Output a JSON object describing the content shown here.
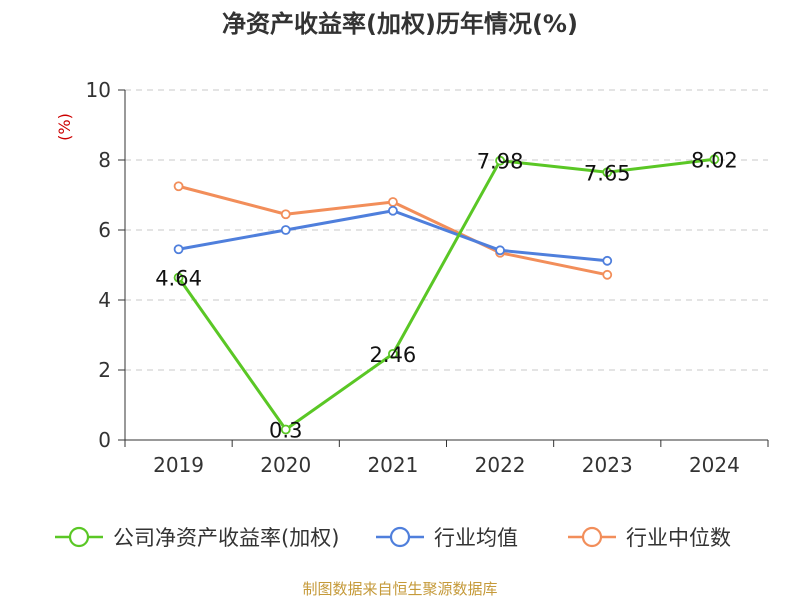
{
  "chart_data": {
    "type": "line",
    "title": "净资产收益率(加权)历年情况(%)",
    "ylabel": "(%)",
    "ylim": [
      0,
      10
    ],
    "yticks": [
      0,
      2,
      4,
      6,
      8,
      10
    ],
    "categories": [
      "2019",
      "2020",
      "2021",
      "2022",
      "2023",
      "2024"
    ],
    "grid": true,
    "legend_position": "bottom",
    "series": [
      {
        "name": "公司净资产收益率(加权)",
        "color": "#5ac725",
        "values": [
          4.64,
          0.3,
          2.46,
          7.98,
          7.65,
          8.02
        ],
        "labels": [
          "4.64",
          "0.3",
          "2.46",
          "7.98",
          "7.65",
          "8.02"
        ]
      },
      {
        "name": "行业均值",
        "color": "#4f7fdc",
        "values": [
          5.45,
          6.0,
          6.55,
          5.42,
          5.12,
          null
        ]
      },
      {
        "name": "行业中位数",
        "color": "#f28e5a",
        "values": [
          7.25,
          6.45,
          6.8,
          5.35,
          4.72,
          null
        ]
      }
    ],
    "source": "制图数据来自恒生聚源数据库"
  }
}
